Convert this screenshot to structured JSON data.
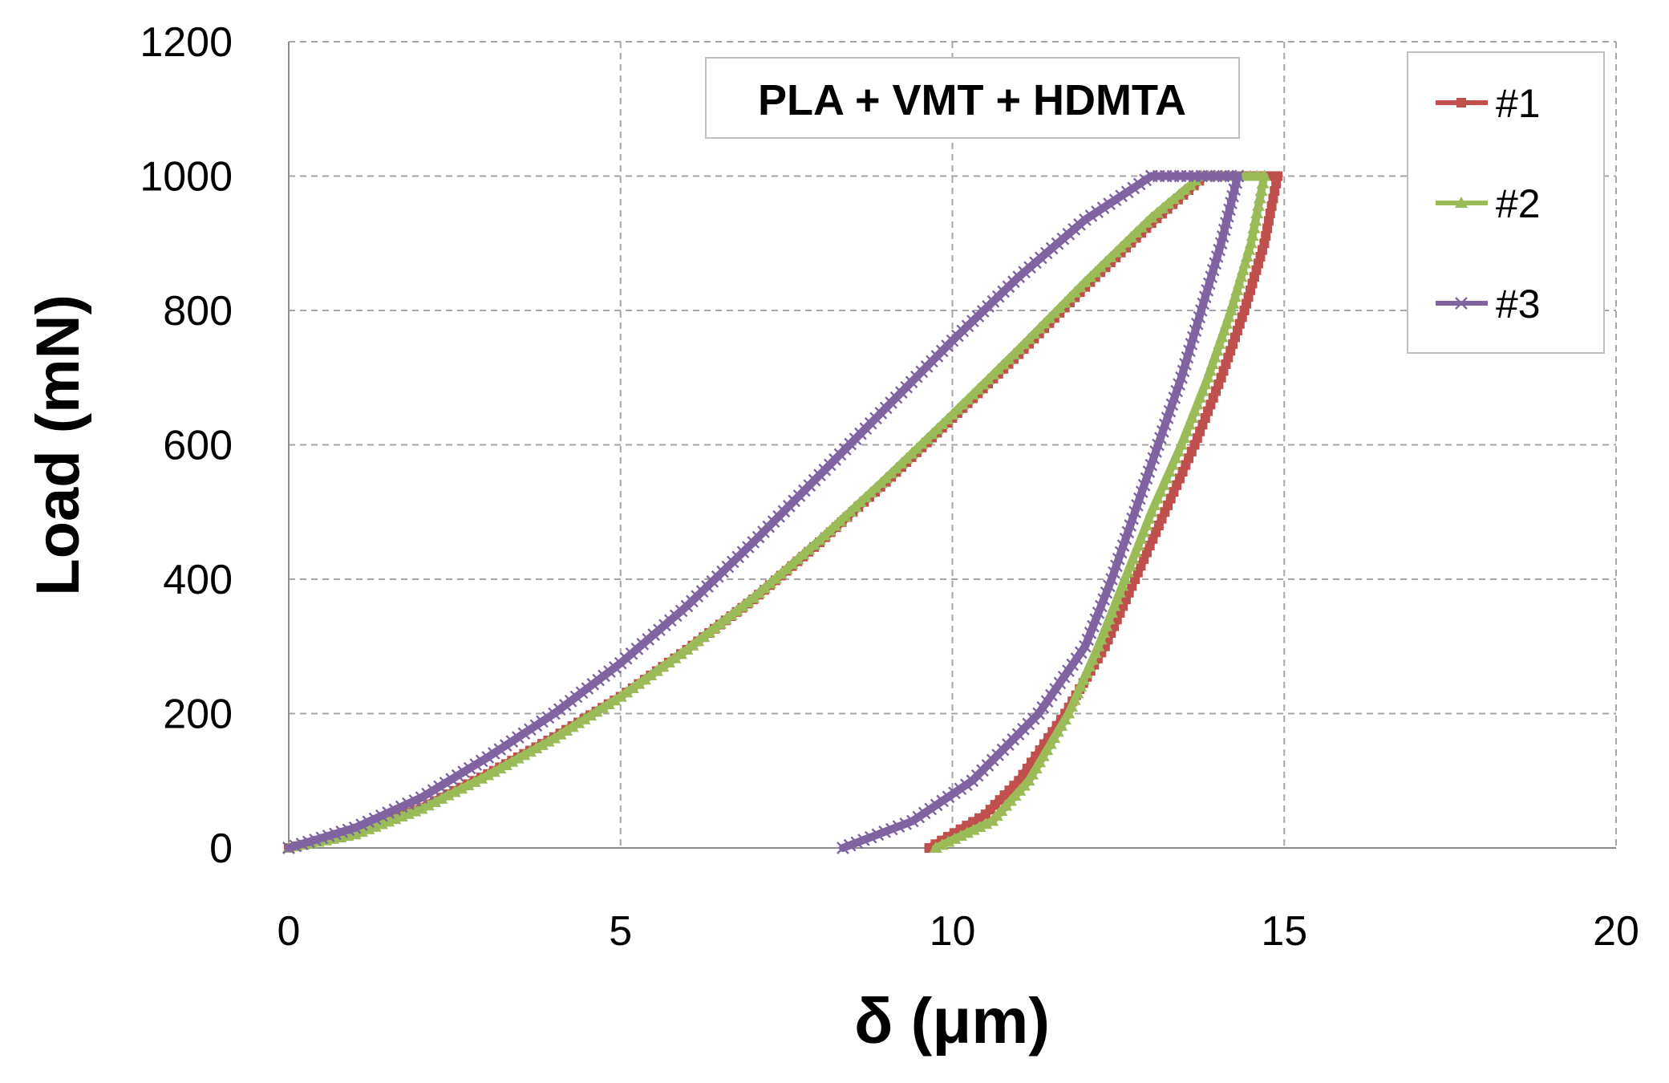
{
  "chart_data": {
    "type": "line",
    "title": "PLA + VMT + HDMTA",
    "xlabel": "δ (μm)",
    "ylabel": "Load (mN)",
    "xlim": [
      0,
      20
    ],
    "ylim": [
      0,
      1200
    ],
    "xticks": [
      0,
      5,
      10,
      15,
      20
    ],
    "yticks": [
      0,
      200,
      400,
      600,
      800,
      1000,
      1200
    ],
    "grid": true,
    "legend_position": "top-right",
    "series": [
      {
        "name": "#1",
        "color": "#c0504d",
        "marker": "square",
        "loading": [
          [
            0,
            0
          ],
          [
            1,
            22
          ],
          [
            2,
            60
          ],
          [
            3,
            110
          ],
          [
            4,
            165
          ],
          [
            5,
            225
          ],
          [
            6,
            295
          ],
          [
            7,
            370
          ],
          [
            8,
            455
          ],
          [
            9,
            545
          ],
          [
            10,
            640
          ],
          [
            11,
            735
          ],
          [
            12,
            835
          ],
          [
            13,
            930
          ],
          [
            13.8,
            1000
          ]
        ],
        "hold": [
          [
            13.8,
            1000
          ],
          [
            14.9,
            1000
          ]
        ],
        "unloading": [
          [
            14.9,
            1000
          ],
          [
            14.7,
            900
          ],
          [
            14.4,
            800
          ],
          [
            14.05,
            700
          ],
          [
            13.65,
            600
          ],
          [
            13.2,
            500
          ],
          [
            12.75,
            400
          ],
          [
            12.3,
            300
          ],
          [
            11.7,
            200
          ],
          [
            11.0,
            100
          ],
          [
            10.5,
            50
          ],
          [
            9.65,
            0
          ]
        ]
      },
      {
        "name": "#2",
        "color": "#9bbb59",
        "marker": "triangle",
        "loading": [
          [
            0,
            0
          ],
          [
            1,
            20
          ],
          [
            2,
            58
          ],
          [
            3,
            108
          ],
          [
            4,
            163
          ],
          [
            5,
            225
          ],
          [
            6,
            295
          ],
          [
            7,
            372
          ],
          [
            8,
            458
          ],
          [
            9,
            550
          ],
          [
            10,
            645
          ],
          [
            11,
            742
          ],
          [
            12,
            842
          ],
          [
            13,
            938
          ],
          [
            13.75,
            1000
          ]
        ],
        "hold": [
          [
            13.75,
            1000
          ],
          [
            14.7,
            1000
          ]
        ],
        "unloading": [
          [
            14.7,
            1000
          ],
          [
            14.5,
            900
          ],
          [
            14.2,
            800
          ],
          [
            13.85,
            700
          ],
          [
            13.45,
            600
          ],
          [
            13.0,
            500
          ],
          [
            12.6,
            400
          ],
          [
            12.2,
            300
          ],
          [
            11.75,
            200
          ],
          [
            11.15,
            100
          ],
          [
            10.6,
            40
          ],
          [
            9.75,
            0
          ]
        ]
      },
      {
        "name": "#3",
        "color": "#8064a2",
        "marker": "x",
        "loading": [
          [
            0,
            0
          ],
          [
            1,
            30
          ],
          [
            2,
            75
          ],
          [
            3,
            135
          ],
          [
            4,
            200
          ],
          [
            5,
            275
          ],
          [
            6,
            360
          ],
          [
            7,
            455
          ],
          [
            8,
            555
          ],
          [
            9,
            655
          ],
          [
            10,
            755
          ],
          [
            11,
            850
          ],
          [
            12,
            935
          ],
          [
            13,
            1000
          ]
        ],
        "hold": [
          [
            13,
            1000
          ],
          [
            14.3,
            1000
          ]
        ],
        "unloading": [
          [
            14.3,
            1000
          ],
          [
            14.05,
            900
          ],
          [
            13.75,
            800
          ],
          [
            13.45,
            700
          ],
          [
            13.1,
            600
          ],
          [
            12.75,
            500
          ],
          [
            12.4,
            400
          ],
          [
            12.0,
            300
          ],
          [
            11.3,
            200
          ],
          [
            10.3,
            100
          ],
          [
            9.4,
            40
          ],
          [
            8.35,
            0
          ]
        ]
      }
    ]
  }
}
